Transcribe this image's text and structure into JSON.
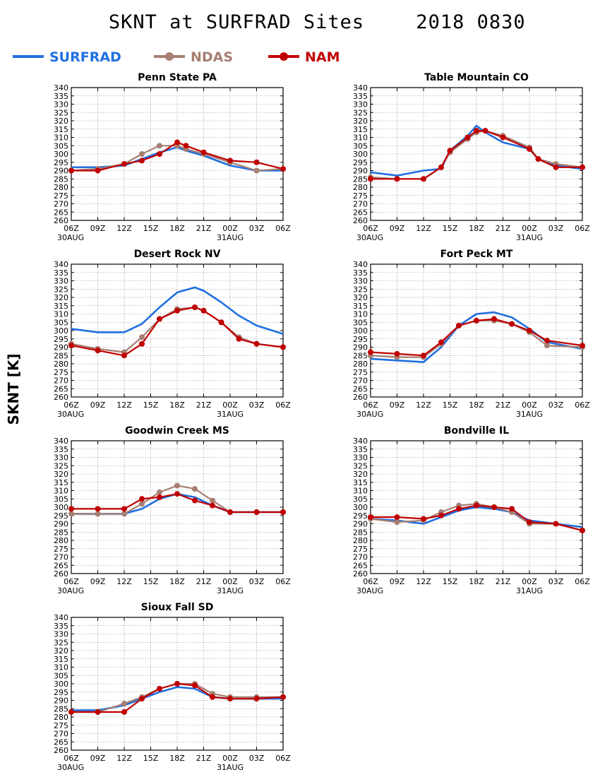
{
  "page_title": "SKNT at SURFRAD Sites",
  "page_date": "2018 0830",
  "y_axis_label": "SKNT [K]",
  "colors": {
    "SURFRAD": "#1f6fe0",
    "NDAS": "#a67e72",
    "NAM": "#c00000"
  },
  "chart_data": [
    {
      "type": "line",
      "title": "Penn State PA",
      "x_ticks": [
        "06Z",
        "09Z",
        "12Z",
        "15Z",
        "18Z",
        "21Z",
        "00Z",
        "03Z",
        "06Z"
      ],
      "x_date_labels": [
        "30AUG",
        "31AUG"
      ],
      "ylim": [
        260,
        340
      ],
      "y_ticks": [
        260,
        265,
        270,
        275,
        280,
        285,
        290,
        295,
        300,
        305,
        310,
        315,
        320,
        325,
        330,
        335,
        340
      ],
      "grid": true,
      "series": [
        {
          "name": "SURFRAD",
          "x": [
            0,
            3,
            6,
            8,
            10,
            12,
            13,
            15,
            18,
            21,
            24
          ],
          "y": [
            292,
            292,
            293,
            297,
            301,
            304,
            302,
            299,
            293,
            290,
            290
          ]
        },
        {
          "name": "NDAS",
          "x": [
            0,
            3,
            6,
            8,
            10,
            12,
            13,
            15,
            18,
            21,
            24
          ],
          "y": [
            290,
            291,
            294,
            300,
            305,
            305,
            303,
            300,
            295,
            290,
            291
          ]
        },
        {
          "name": "NAM",
          "x": [
            0,
            3,
            6,
            8,
            10,
            12,
            13,
            15,
            18,
            21,
            24
          ],
          "y": [
            290,
            290,
            294,
            296,
            300,
            307,
            305,
            301,
            296,
            295,
            291
          ]
        }
      ]
    },
    {
      "type": "line",
      "title": "Table Mountain CO",
      "x_ticks": [
        "06Z",
        "09Z",
        "12Z",
        "15Z",
        "18Z",
        "21Z",
        "00Z",
        "03Z",
        "06Z"
      ],
      "x_date_labels": [
        "30AUG",
        "31AUG"
      ],
      "ylim": [
        260,
        340
      ],
      "y_ticks": [
        260,
        265,
        270,
        275,
        280,
        285,
        290,
        295,
        300,
        305,
        310,
        315,
        320,
        325,
        330,
        335,
        340
      ],
      "grid": true,
      "series": [
        {
          "name": "SURFRAD",
          "x": [
            0,
            3,
            6,
            8,
            9,
            11,
            12,
            13,
            15,
            18,
            19,
            21,
            24
          ],
          "y": [
            289,
            287,
            290,
            291,
            302,
            311,
            317,
            313,
            307,
            303,
            297,
            293,
            291
          ]
        },
        {
          "name": "NDAS",
          "x": [
            0,
            3,
            6,
            8,
            9,
            11,
            12,
            13,
            15,
            18,
            19,
            21,
            24
          ],
          "y": [
            286,
            285,
            285,
            292,
            301,
            309,
            313,
            314,
            311,
            304,
            297,
            294,
            292
          ]
        },
        {
          "name": "NAM",
          "x": [
            0,
            3,
            6,
            8,
            9,
            11,
            12,
            13,
            15,
            18,
            19,
            21,
            24
          ],
          "y": [
            285,
            285,
            285,
            292,
            302,
            310,
            314,
            314,
            310,
            303,
            297,
            292,
            292
          ]
        }
      ]
    },
    {
      "type": "line",
      "title": "Desert Rock NV",
      "x_ticks": [
        "06Z",
        "09Z",
        "12Z",
        "15Z",
        "18Z",
        "21Z",
        "00Z",
        "03Z",
        "06Z"
      ],
      "x_date_labels": [
        "30AUG",
        "31AUG"
      ],
      "ylim": [
        260,
        340
      ],
      "y_ticks": [
        260,
        265,
        270,
        275,
        280,
        285,
        290,
        295,
        300,
        305,
        310,
        315,
        320,
        325,
        330,
        335,
        340
      ],
      "grid": true,
      "series": [
        {
          "name": "SURFRAD",
          "x": [
            0,
            3,
            6,
            8,
            10,
            12,
            14,
            15,
            17,
            19,
            21,
            24
          ],
          "y": [
            301,
            299,
            299,
            304,
            314,
            323,
            326,
            324,
            317,
            309,
            303,
            298
          ]
        },
        {
          "name": "NDAS",
          "x": [
            0,
            3,
            6,
            8,
            10,
            12,
            14,
            15,
            17,
            19,
            21,
            24
          ],
          "y": [
            292,
            289,
            287,
            296,
            307,
            313,
            314,
            312,
            305,
            296,
            292,
            290
          ]
        },
        {
          "name": "NAM",
          "x": [
            0,
            3,
            6,
            8,
            10,
            12,
            14,
            15,
            17,
            19,
            21,
            24
          ],
          "y": [
            291,
            288,
            285,
            292,
            307,
            312,
            314,
            312,
            305,
            295,
            292,
            290
          ]
        }
      ]
    },
    {
      "type": "line",
      "title": "Fort Peck MT",
      "x_ticks": [
        "06Z",
        "09Z",
        "12Z",
        "15Z",
        "18Z",
        "21Z",
        "00Z",
        "03Z",
        "06Z"
      ],
      "x_date_labels": [
        "30AUG",
        "31AUG"
      ],
      "ylim": [
        260,
        340
      ],
      "y_ticks": [
        260,
        265,
        270,
        275,
        280,
        285,
        290,
        295,
        300,
        305,
        310,
        315,
        320,
        325,
        330,
        335,
        340
      ],
      "grid": true,
      "series": [
        {
          "name": "SURFRAD",
          "x": [
            0,
            3,
            6,
            8,
            10,
            12,
            14,
            16,
            18,
            20,
            24
          ],
          "y": [
            283,
            282,
            281,
            290,
            303,
            310,
            311,
            308,
            301,
            293,
            289
          ]
        },
        {
          "name": "NDAS",
          "x": [
            0,
            3,
            6,
            8,
            10,
            12,
            14,
            16,
            18,
            20,
            24
          ],
          "y": [
            285,
            284,
            284,
            292,
            303,
            306,
            306,
            304,
            299,
            291,
            290
          ]
        },
        {
          "name": "NAM",
          "x": [
            0,
            3,
            6,
            8,
            10,
            12,
            14,
            16,
            18,
            20,
            24
          ],
          "y": [
            287,
            286,
            285,
            293,
            303,
            306,
            307,
            304,
            300,
            294,
            291
          ]
        }
      ]
    },
    {
      "type": "line",
      "title": "Goodwin Creek MS",
      "x_ticks": [
        "06Z",
        "09Z",
        "12Z",
        "15Z",
        "18Z",
        "21Z",
        "00Z",
        "03Z",
        "06Z"
      ],
      "x_date_labels": [
        "30AUG",
        "31AUG"
      ],
      "ylim": [
        260,
        340
      ],
      "y_ticks": [
        260,
        265,
        270,
        275,
        280,
        285,
        290,
        295,
        300,
        305,
        310,
        315,
        320,
        325,
        330,
        335,
        340
      ],
      "grid": true,
      "series": [
        {
          "name": "SURFRAD",
          "x": [
            0,
            3,
            6,
            8,
            10,
            12,
            14,
            16,
            18,
            21,
            24
          ],
          "y": [
            296,
            296,
            296,
            299,
            305,
            308,
            306,
            301,
            297,
            297,
            297
          ]
        },
        {
          "name": "NDAS",
          "x": [
            0,
            3,
            6,
            8,
            10,
            12,
            14,
            16,
            18,
            21,
            24
          ],
          "y": [
            296,
            296,
            296,
            302,
            309,
            313,
            311,
            304,
            297,
            297,
            297
          ]
        },
        {
          "name": "NAM",
          "x": [
            0,
            3,
            6,
            8,
            10,
            12,
            14,
            16,
            18,
            21,
            24
          ],
          "y": [
            299,
            299,
            299,
            305,
            306,
            308,
            304,
            301,
            297,
            297,
            297
          ]
        }
      ]
    },
    {
      "type": "line",
      "title": "Bondville IL",
      "x_ticks": [
        "06Z",
        "09Z",
        "12Z",
        "15Z",
        "18Z",
        "21Z",
        "00Z",
        "03Z",
        "06Z"
      ],
      "x_date_labels": [
        "30AUG",
        "31AUG"
      ],
      "ylim": [
        260,
        340
      ],
      "y_ticks": [
        260,
        265,
        270,
        275,
        280,
        285,
        290,
        295,
        300,
        305,
        310,
        315,
        320,
        325,
        330,
        335,
        340
      ],
      "grid": true,
      "series": [
        {
          "name": "SURFRAD",
          "x": [
            0,
            3,
            6,
            8,
            10,
            12,
            14,
            16,
            18,
            21,
            24
          ],
          "y": [
            293,
            292,
            290,
            294,
            298,
            300,
            299,
            297,
            292,
            290,
            288
          ]
        },
        {
          "name": "NDAS",
          "x": [
            0,
            3,
            6,
            8,
            10,
            12,
            14,
            16,
            18,
            21,
            24
          ],
          "y": [
            293,
            291,
            292,
            297,
            301,
            302,
            300,
            297,
            290,
            290,
            286
          ]
        },
        {
          "name": "NAM",
          "x": [
            0,
            3,
            6,
            8,
            10,
            12,
            14,
            16,
            18,
            21,
            24
          ],
          "y": [
            294,
            294,
            293,
            295,
            299,
            301,
            300,
            299,
            291,
            290,
            286
          ]
        }
      ]
    },
    {
      "type": "line",
      "title": "Sioux Fall SD",
      "x_ticks": [
        "06Z",
        "09Z",
        "12Z",
        "15Z",
        "18Z",
        "21Z",
        "00Z",
        "03Z",
        "06Z"
      ],
      "x_date_labels": [
        "30AUG",
        "31AUG"
      ],
      "ylim": [
        260,
        340
      ],
      "y_ticks": [
        260,
        265,
        270,
        275,
        280,
        285,
        290,
        295,
        300,
        305,
        310,
        315,
        320,
        325,
        330,
        335,
        340
      ],
      "grid": true,
      "series": [
        {
          "name": "SURFRAD",
          "x": [
            0,
            3,
            6,
            8,
            10,
            12,
            14,
            16,
            18,
            21,
            24
          ],
          "y": [
            284,
            284,
            287,
            291,
            295,
            298,
            297,
            292,
            291,
            291,
            291
          ]
        },
        {
          "name": "NDAS",
          "x": [
            0,
            3,
            6,
            8,
            10,
            12,
            14,
            16,
            18,
            21,
            24
          ],
          "y": [
            283,
            283,
            288,
            292,
            297,
            300,
            300,
            294,
            292,
            292,
            292
          ]
        },
        {
          "name": "NAM",
          "x": [
            0,
            3,
            6,
            8,
            10,
            12,
            14,
            16,
            18,
            21,
            24
          ],
          "y": [
            283,
            283,
            283,
            291,
            297,
            300,
            299,
            292,
            291,
            291,
            292
          ]
        }
      ]
    }
  ]
}
